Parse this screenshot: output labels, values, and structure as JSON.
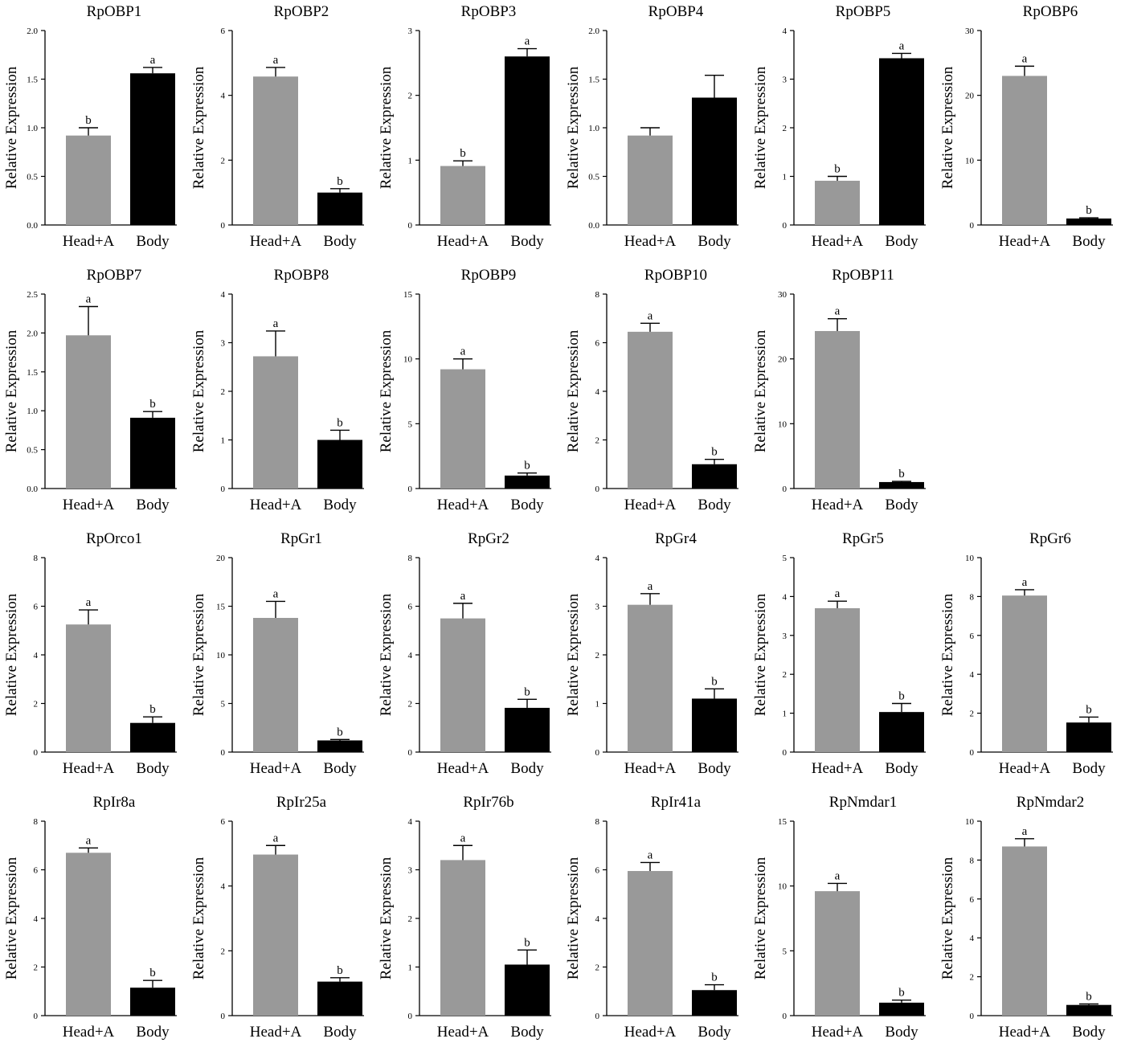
{
  "figure": {
    "ylabel": "Relative Expression",
    "categories": [
      "Head+A",
      "Body"
    ],
    "colors": {
      "head": "#999999",
      "body": "#000000",
      "axis": "#000000"
    }
  },
  "chart_data": [
    {
      "type": "bar",
      "title": "RpOBP1",
      "categories": [
        "Head+A",
        "Body"
      ],
      "values": [
        0.92,
        1.56
      ],
      "errors": [
        0.08,
        0.06
      ],
      "letters": [
        "b",
        "a"
      ],
      "ylim": [
        0,
        2.0
      ],
      "ticks": [
        "0.0",
        "0.5",
        "1.0",
        "1.5",
        "2.0"
      ],
      "ylabel": "Relative Expression"
    },
    {
      "type": "bar",
      "title": "RpOBP2",
      "categories": [
        "Head+A",
        "Body"
      ],
      "values": [
        4.58,
        1.0
      ],
      "errors": [
        0.28,
        0.12
      ],
      "letters": [
        "a",
        "b"
      ],
      "ylim": [
        0,
        6
      ],
      "ticks": [
        "0",
        "2",
        "4",
        "6"
      ],
      "ylabel": "Relative Expression"
    },
    {
      "type": "bar",
      "title": "RpOBP3",
      "categories": [
        "Head+A",
        "Body"
      ],
      "values": [
        0.91,
        2.6
      ],
      "errors": [
        0.08,
        0.12
      ],
      "letters": [
        "b",
        "a"
      ],
      "ylim": [
        0,
        3
      ],
      "ticks": [
        "0",
        "1",
        "2",
        "3"
      ],
      "ylabel": "Relative Expression"
    },
    {
      "type": "bar",
      "title": "RpOBP4",
      "categories": [
        "Head+A",
        "Body"
      ],
      "values": [
        0.92,
        1.31
      ],
      "errors": [
        0.08,
        0.23
      ],
      "letters": [
        "",
        ""
      ],
      "ylim": [
        0,
        2.0
      ],
      "ticks": [
        "0.0",
        "0.5",
        "1.0",
        "1.5",
        "2.0"
      ],
      "ylabel": "Relative Expression"
    },
    {
      "type": "bar",
      "title": "RpOBP5",
      "categories": [
        "Head+A",
        "Body"
      ],
      "values": [
        0.91,
        3.43
      ],
      "errors": [
        0.09,
        0.1
      ],
      "letters": [
        "b",
        "a"
      ],
      "ylim": [
        0,
        4
      ],
      "ticks": [
        "0",
        "1",
        "2",
        "3",
        "4"
      ],
      "ylabel": "Relative Expression"
    },
    {
      "type": "bar",
      "title": "RpOBP6",
      "categories": [
        "Head+A",
        "Body"
      ],
      "values": [
        23.0,
        1.0
      ],
      "errors": [
        1.5,
        0.1
      ],
      "letters": [
        "a",
        "b"
      ],
      "ylim": [
        0,
        30
      ],
      "ticks": [
        "0",
        "10",
        "20",
        "30"
      ],
      "ylabel": "Relative Expression"
    },
    {
      "type": "bar",
      "title": "RpOBP7",
      "categories": [
        "Head+A",
        "Body"
      ],
      "values": [
        1.97,
        0.91
      ],
      "errors": [
        0.37,
        0.08
      ],
      "letters": [
        "a",
        "b"
      ],
      "ylim": [
        0,
        2.5
      ],
      "ticks": [
        "0.0",
        "0.5",
        "1.0",
        "1.5",
        "2.0",
        "2.5"
      ],
      "ylabel": "Relative Expression"
    },
    {
      "type": "bar",
      "title": "RpOBP8",
      "categories": [
        "Head+A",
        "Body"
      ],
      "values": [
        2.72,
        1.0
      ],
      "errors": [
        0.52,
        0.2
      ],
      "letters": [
        "a",
        "b"
      ],
      "ylim": [
        0,
        4
      ],
      "ticks": [
        "0",
        "1",
        "2",
        "3",
        "4"
      ],
      "ylabel": "Relative Expression"
    },
    {
      "type": "bar",
      "title": "RpOBP9",
      "categories": [
        "Head+A",
        "Body"
      ],
      "values": [
        9.2,
        1.0
      ],
      "errors": [
        0.8,
        0.2
      ],
      "letters": [
        "a",
        "b"
      ],
      "ylim": [
        0,
        15
      ],
      "ticks": [
        "0",
        "5",
        "10",
        "15"
      ],
      "ylabel": "Relative Expression"
    },
    {
      "type": "bar",
      "title": "RpOBP10",
      "categories": [
        "Head+A",
        "Body"
      ],
      "values": [
        6.45,
        1.0
      ],
      "errors": [
        0.35,
        0.2
      ],
      "letters": [
        "a",
        "b"
      ],
      "ylim": [
        0,
        8
      ],
      "ticks": [
        "0",
        "2",
        "4",
        "6",
        "8"
      ],
      "ylabel": "Relative Expression"
    },
    {
      "type": "bar",
      "title": "RpOBP11",
      "categories": [
        "Head+A",
        "Body"
      ],
      "values": [
        24.3,
        1.0
      ],
      "errors": [
        1.9,
        0.1
      ],
      "letters": [
        "a",
        "b"
      ],
      "ylim": [
        0,
        30
      ],
      "ticks": [
        "0",
        "10",
        "20",
        "30"
      ],
      "ylabel": "Relative Expression"
    },
    {
      "type": "bar",
      "title": "RpOrco1",
      "categories": [
        "Head+A",
        "Body"
      ],
      "values": [
        5.25,
        1.2
      ],
      "errors": [
        0.6,
        0.25
      ],
      "letters": [
        "a",
        "b"
      ],
      "ylim": [
        0,
        8
      ],
      "ticks": [
        "0",
        "2",
        "4",
        "6",
        "8"
      ],
      "ylabel": "Relative Expression"
    },
    {
      "type": "bar",
      "title": "RpGr1",
      "categories": [
        "Head+A",
        "Body"
      ],
      "values": [
        13.8,
        1.2
      ],
      "errors": [
        1.7,
        0.1
      ],
      "letters": [
        "a",
        "b"
      ],
      "ylim": [
        0,
        20
      ],
      "ticks": [
        "0",
        "5",
        "10",
        "15",
        "20"
      ],
      "ylabel": "Relative Expression"
    },
    {
      "type": "bar",
      "title": "RpGr2",
      "categories": [
        "Head+A",
        "Body"
      ],
      "values": [
        5.5,
        1.82
      ],
      "errors": [
        0.62,
        0.35
      ],
      "letters": [
        "a",
        "b"
      ],
      "ylim": [
        0,
        8
      ],
      "ticks": [
        "0",
        "2",
        "4",
        "6",
        "8"
      ],
      "ylabel": "Relative Expression"
    },
    {
      "type": "bar",
      "title": "RpGr4",
      "categories": [
        "Head+A",
        "Body"
      ],
      "values": [
        3.03,
        1.1
      ],
      "errors": [
        0.23,
        0.2
      ],
      "letters": [
        "a",
        "b"
      ],
      "ylim": [
        0,
        4
      ],
      "ticks": [
        "0",
        "1",
        "2",
        "3",
        "4"
      ],
      "ylabel": "Relative Expression"
    },
    {
      "type": "bar",
      "title": "RpGr5",
      "categories": [
        "Head+A",
        "Body"
      ],
      "values": [
        3.7,
        1.03
      ],
      "errors": [
        0.18,
        0.22
      ],
      "letters": [
        "a",
        "b"
      ],
      "ylim": [
        0,
        5
      ],
      "ticks": [
        "0",
        "1",
        "2",
        "3",
        "4",
        "5"
      ],
      "ylabel": "Relative Expression"
    },
    {
      "type": "bar",
      "title": "RpGr6",
      "categories": [
        "Head+A",
        "Body"
      ],
      "values": [
        8.05,
        1.52
      ],
      "errors": [
        0.3,
        0.28
      ],
      "letters": [
        "a",
        "b"
      ],
      "ylim": [
        0,
        10
      ],
      "ticks": [
        "0",
        "2",
        "4",
        "6",
        "8",
        "10"
      ],
      "ylabel": "Relative Expression"
    },
    {
      "type": "bar",
      "title": "RpIr8a",
      "categories": [
        "Head+A",
        "Body"
      ],
      "values": [
        6.7,
        1.15
      ],
      "errors": [
        0.2,
        0.3
      ],
      "letters": [
        "a",
        "b"
      ],
      "ylim": [
        0,
        8
      ],
      "ticks": [
        "0",
        "2",
        "4",
        "6",
        "8"
      ],
      "ylabel": "Relative Expression"
    },
    {
      "type": "bar",
      "title": "RpIr25a",
      "categories": [
        "Head+A",
        "Body"
      ],
      "values": [
        4.97,
        1.05
      ],
      "errors": [
        0.28,
        0.12
      ],
      "letters": [
        "a",
        "b"
      ],
      "ylim": [
        0,
        6
      ],
      "ticks": [
        "0",
        "2",
        "4",
        "6"
      ],
      "ylabel": "Relative Expression"
    },
    {
      "type": "bar",
      "title": "RpIr76b",
      "categories": [
        "Head+A",
        "Body"
      ],
      "values": [
        3.2,
        1.05
      ],
      "errors": [
        0.3,
        0.3
      ],
      "letters": [
        "a",
        "b"
      ],
      "ylim": [
        0,
        4
      ],
      "ticks": [
        "0",
        "1",
        "2",
        "3",
        "4"
      ],
      "ylabel": "Relative Expression"
    },
    {
      "type": "bar",
      "title": "RpIr41a",
      "categories": [
        "Head+A",
        "Body"
      ],
      "values": [
        5.95,
        1.05
      ],
      "errors": [
        0.35,
        0.22
      ],
      "letters": [
        "a",
        "b"
      ],
      "ylim": [
        0,
        8
      ],
      "ticks": [
        "0",
        "2",
        "4",
        "6",
        "8"
      ],
      "ylabel": "Relative Expression"
    },
    {
      "type": "bar",
      "title": "RpNmdar1",
      "categories": [
        "Head+A",
        "Body"
      ],
      "values": [
        9.6,
        1.0
      ],
      "errors": [
        0.6,
        0.2
      ],
      "letters": [
        "a",
        "b"
      ],
      "ylim": [
        0,
        15
      ],
      "ticks": [
        "0",
        "5",
        "10",
        "15"
      ],
      "ylabel": "Relative Expression"
    },
    {
      "type": "bar",
      "title": "RpNmdar2",
      "categories": [
        "Head+A",
        "Body"
      ],
      "values": [
        8.7,
        0.55
      ],
      "errors": [
        0.4,
        0.05
      ],
      "letters": [
        "a",
        "b"
      ],
      "ylim": [
        0,
        10
      ],
      "ticks": [
        "0",
        "2",
        "4",
        "6",
        "8",
        "10"
      ],
      "ylabel": "Relative Expression"
    }
  ]
}
